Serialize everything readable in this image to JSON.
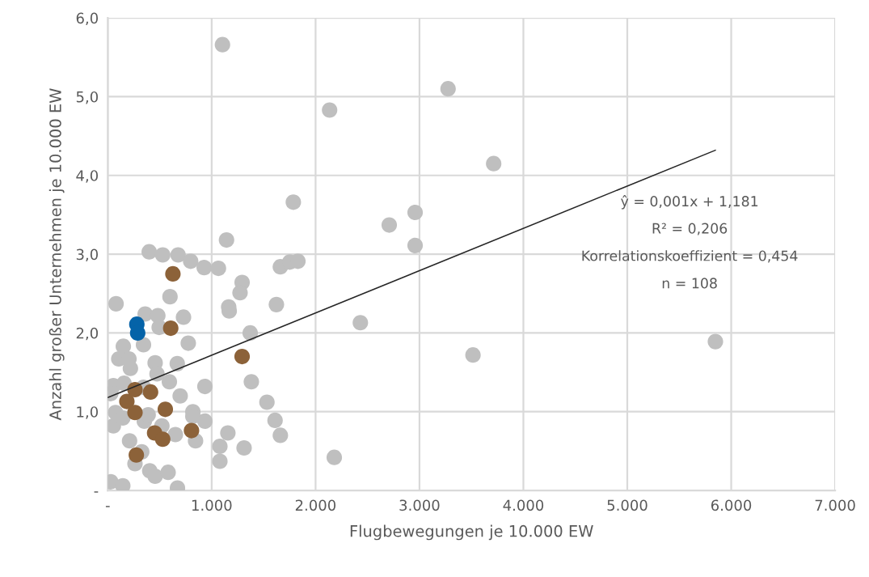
{
  "chart_data": {
    "type": "scatter",
    "xlabel": "Flugbewegungen je 10.000 EW",
    "ylabel": "Anzahl großer Unternehmen je 10.000 EW",
    "xlim": [
      0,
      7000
    ],
    "ylim": [
      0,
      6
    ],
    "xticks": [
      {
        "value": 0,
        "label": "-"
      },
      {
        "value": 1000,
        "label": "1.000"
      },
      {
        "value": 2000,
        "label": "2.000"
      },
      {
        "value": 3000,
        "label": "3.000"
      },
      {
        "value": 4000,
        "label": "4.000"
      },
      {
        "value": 5000,
        "label": "5.000"
      },
      {
        "value": 6000,
        "label": "6.000"
      },
      {
        "value": 7000,
        "label": "7.000"
      }
    ],
    "yticks": [
      {
        "value": 0,
        "label": "-"
      },
      {
        "value": 1,
        "label": "1,0"
      },
      {
        "value": 2,
        "label": "2,0"
      },
      {
        "value": 3,
        "label": "3,0"
      },
      {
        "value": 4,
        "label": "4,0"
      },
      {
        "value": 5,
        "label": "5,0"
      },
      {
        "value": 6,
        "label": "6,0"
      }
    ],
    "grid": true,
    "marker": "circle",
    "series": [
      {
        "color": "#bfbfbf",
        "x": [
          1104,
          2135,
          3275,
          3714,
          1786,
          2709,
          2958,
          2958,
          2431,
          3515,
          2180,
          5848,
          1143,
          399,
          529,
          677,
          798,
          928,
          1065,
          1661,
          1752,
          1830,
          1293,
          1273,
          1164,
          1169,
          1623,
          80,
          599,
          360,
          482,
          729,
          495,
          1371,
          344,
          775,
          150,
          106,
          204,
          218,
          456,
          669,
          474,
          593,
          935,
          54,
          157,
          344,
          697,
          1382,
          1532,
          1610,
          1661,
          75,
          29,
          54,
          145,
          352,
          521,
          819,
          819,
          935,
          651,
          845,
          1156,
          1079,
          1079,
          1312,
          210,
          327,
          262,
          404,
          456,
          581,
          29,
          145,
          671,
          389
        ],
        "values": [
          5.66,
          4.83,
          5.1,
          4.15,
          3.66,
          3.37,
          3.53,
          3.11,
          2.13,
          1.72,
          0.42,
          1.89,
          3.18,
          3.03,
          2.99,
          2.99,
          2.91,
          2.83,
          2.82,
          2.84,
          2.9,
          2.91,
          2.64,
          2.51,
          2.33,
          2.28,
          2.36,
          2.37,
          2.46,
          2.24,
          2.22,
          2.2,
          2.07,
          2.0,
          1.85,
          1.87,
          1.83,
          1.67,
          1.67,
          1.55,
          1.62,
          1.61,
          1.48,
          1.38,
          1.32,
          1.33,
          1.36,
          1.31,
          1.2,
          1.38,
          1.12,
          0.89,
          0.7,
          0.99,
          1.23,
          0.82,
          0.92,
          0.88,
          0.82,
          1.0,
          0.94,
          0.88,
          0.71,
          0.63,
          0.73,
          0.56,
          0.37,
          0.54,
          0.63,
          0.49,
          0.34,
          0.25,
          0.18,
          0.23,
          0.11,
          0.06,
          0.03,
          0.96
        ]
      },
      {
        "color": "#8c6239",
        "x": [
          627,
          606,
          1293,
          262,
          412,
          184,
          262,
          554,
          451,
          529,
          806,
          275
        ],
        "values": [
          2.75,
          2.06,
          1.7,
          1.28,
          1.25,
          1.13,
          0.99,
          1.03,
          0.73,
          0.65,
          0.76,
          0.45
        ]
      },
      {
        "color": "#0563a8",
        "x": [
          280,
          288
        ],
        "values": [
          2.11,
          2.0
        ]
      },
      {
        "type": "line",
        "color": "#262626",
        "marker": "none",
        "x": [
          0,
          5848
        ],
        "values": [
          1.18,
          4.32
        ]
      }
    ],
    "annotations": [
      "ŷ = 0,001x + 1,181",
      "R² = 0,206",
      "Korrelationskoeffizient = 0,454",
      "n = 108"
    ]
  }
}
